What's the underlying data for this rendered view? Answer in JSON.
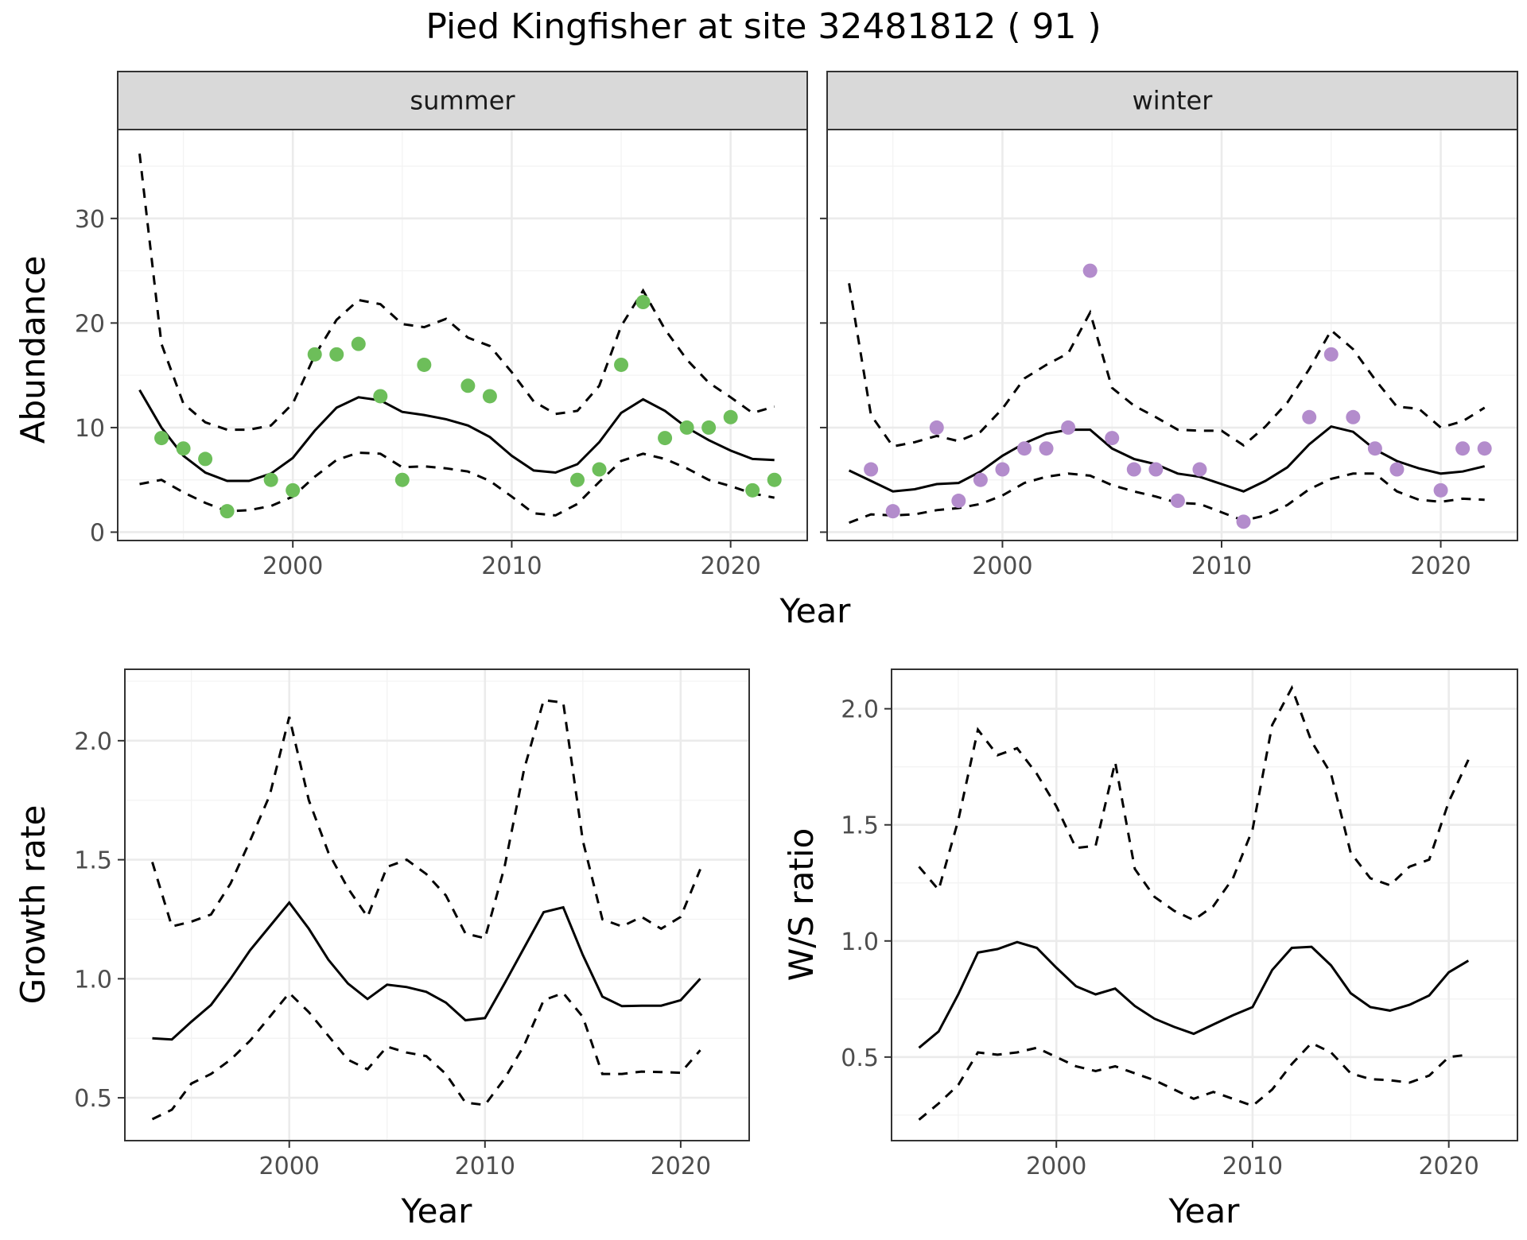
{
  "page": {
    "title": "Pied Kingfisher at site 32481812 ( 91 )"
  },
  "chart_data": [
    {
      "type": "line",
      "id": "abundance-summer",
      "facet_label": "summer",
      "xlabel": "Year",
      "ylabel": "Abundance",
      "xlim": [
        1992,
        2023.5
      ],
      "ylim": [
        -0.8,
        38.5
      ],
      "xticks": [
        2000,
        2010,
        2020
      ],
      "yticks": [
        0,
        10,
        20,
        30
      ],
      "grid": true,
      "point_color": "#6dbe5a",
      "fit": {
        "x": [
          1993,
          1994,
          1995,
          1996,
          1997,
          1998,
          1999,
          2000,
          2001,
          2002,
          2003,
          2004,
          2005,
          2006,
          2007,
          2008,
          2009,
          2010,
          2011,
          2012,
          2013,
          2014,
          2015,
          2016,
          2017,
          2018,
          2019,
          2020,
          2021,
          2022
        ],
        "y": [
          13.6,
          10.0,
          7.3,
          5.7,
          4.9,
          4.9,
          5.6,
          7.1,
          9.7,
          11.9,
          12.9,
          12.6,
          11.5,
          11.2,
          10.8,
          10.2,
          9.1,
          7.3,
          5.9,
          5.7,
          6.5,
          8.6,
          11.4,
          12.7,
          11.6,
          10.0,
          8.8,
          7.8,
          7.0,
          6.9
        ]
      },
      "lower": {
        "x": [
          1993,
          1994,
          1995,
          1996,
          1997,
          1998,
          1999,
          2000,
          2001,
          2002,
          2003,
          2004,
          2005,
          2006,
          2007,
          2008,
          2009,
          2010,
          2011,
          2012,
          2013,
          2014,
          2015,
          2016,
          2017,
          2018,
          2019,
          2020,
          2021,
          2022
        ],
        "y": [
          4.6,
          5.0,
          3.8,
          2.8,
          2.0,
          2.1,
          2.5,
          3.4,
          5.3,
          6.9,
          7.6,
          7.5,
          6.2,
          6.3,
          6.1,
          5.8,
          4.9,
          3.4,
          1.8,
          1.6,
          2.7,
          4.8,
          6.8,
          7.5,
          7.0,
          6.1,
          5.0,
          4.4,
          3.7,
          3.3
        ]
      },
      "upper": {
        "x": [
          1993,
          1994,
          1995,
          1996,
          1997,
          1998,
          1999,
          2000,
          2001,
          2002,
          2003,
          2004,
          2005,
          2006,
          2007,
          2008,
          2009,
          2010,
          2011,
          2012,
          2013,
          2014,
          2015,
          2016,
          2017,
          2018,
          2019,
          2020,
          2021,
          2022
        ],
        "y": [
          36.2,
          18.0,
          12.3,
          10.5,
          9.8,
          9.8,
          10.2,
          12.3,
          16.9,
          20.3,
          22.2,
          21.8,
          19.9,
          19.6,
          20.4,
          18.6,
          17.8,
          15.3,
          12.5,
          11.3,
          11.6,
          14.0,
          19.7,
          23.1,
          19.4,
          16.5,
          14.3,
          12.9,
          11.4,
          12.0
        ]
      },
      "points": {
        "x": [
          1994,
          1995,
          1996,
          1997,
          1999,
          2000,
          2001,
          2002,
          2003,
          2004,
          2005,
          2006,
          2008,
          2009,
          2013,
          2014,
          2015,
          2016,
          2017,
          2018,
          2019,
          2020,
          2021,
          2022
        ],
        "y": [
          9,
          8,
          7,
          2,
          5,
          4,
          17,
          17,
          18,
          13,
          5,
          16,
          14,
          13,
          5,
          6,
          16,
          22,
          9,
          10,
          10,
          11,
          4,
          5
        ]
      }
    },
    {
      "type": "line",
      "id": "abundance-winter",
      "facet_label": "winter",
      "xlabel": "Year",
      "ylabel": "Abundance",
      "xlim": [
        1992,
        2023.5
      ],
      "ylim": [
        -0.8,
        38.5
      ],
      "xticks": [
        2000,
        2010,
        2020
      ],
      "yticks": [
        0,
        10,
        20,
        30
      ],
      "grid": true,
      "point_color": "#b38ccc",
      "fit": {
        "x": [
          1993,
          1994,
          1995,
          1996,
          1997,
          1998,
          1999,
          2000,
          2001,
          2002,
          2003,
          2004,
          2005,
          2006,
          2007,
          2008,
          2009,
          2010,
          2011,
          2012,
          2013,
          2014,
          2015,
          2016,
          2017,
          2018,
          2019,
          2020,
          2021,
          2022
        ],
        "y": [
          5.9,
          4.9,
          3.9,
          4.1,
          4.6,
          4.7,
          5.8,
          7.3,
          8.5,
          9.4,
          9.8,
          9.8,
          8.0,
          7.0,
          6.5,
          5.6,
          5.3,
          4.6,
          3.9,
          4.9,
          6.2,
          8.4,
          10.1,
          9.6,
          7.9,
          6.8,
          6.1,
          5.6,
          5.8,
          6.3
        ]
      },
      "lower": {
        "x": [
          1993,
          1994,
          1995,
          1996,
          1997,
          1998,
          1999,
          2000,
          2001,
          2002,
          2003,
          2004,
          2005,
          2006,
          2007,
          2008,
          2009,
          2010,
          2011,
          2012,
          2013,
          2014,
          2015,
          2016,
          2017,
          2018,
          2019,
          2020,
          2021,
          2022
        ],
        "y": [
          0.9,
          1.7,
          1.6,
          1.7,
          2.1,
          2.3,
          2.7,
          3.5,
          4.7,
          5.3,
          5.6,
          5.4,
          4.5,
          3.9,
          3.4,
          2.8,
          2.7,
          1.9,
          1.1,
          1.6,
          2.6,
          4.1,
          5.1,
          5.6,
          5.6,
          3.9,
          3.1,
          2.9,
          3.2,
          3.1
        ]
      },
      "upper": {
        "x": [
          1993,
          1994,
          1995,
          1996,
          1997,
          1998,
          1999,
          2000,
          2001,
          2002,
          2003,
          2004,
          2005,
          2006,
          2007,
          2008,
          2009,
          2010,
          2011,
          2012,
          2013,
          2014,
          2015,
          2016,
          2017,
          2018,
          2019,
          2020,
          2021,
          2022
        ],
        "y": [
          23.8,
          11.2,
          8.2,
          8.6,
          9.2,
          8.7,
          9.6,
          11.8,
          14.7,
          16.0,
          17.1,
          21.0,
          13.8,
          12.1,
          11.0,
          9.8,
          9.7,
          9.7,
          8.3,
          10.1,
          12.4,
          15.6,
          19.3,
          17.5,
          14.6,
          12.0,
          11.8,
          10.0,
          10.6,
          11.9
        ]
      },
      "points": {
        "x": [
          1994,
          1995,
          1997,
          1998,
          1999,
          2000,
          2001,
          2002,
          2003,
          2004,
          2005,
          2006,
          2007,
          2008,
          2009,
          2011,
          2014,
          2015,
          2016,
          2017,
          2018,
          2020,
          2021,
          2022
        ],
        "y": [
          6,
          2,
          10,
          3,
          5,
          6,
          8,
          8,
          10,
          25,
          9,
          6,
          6,
          3,
          6,
          1,
          11,
          17,
          11,
          8,
          6,
          4,
          8,
          8
        ]
      }
    },
    {
      "type": "line",
      "id": "growth-rate",
      "xlabel": "Year",
      "ylabel": "Growth rate",
      "xlim": [
        1991.6,
        2023.5
      ],
      "ylim": [
        0.32,
        2.3
      ],
      "xticks": [
        2000,
        2010,
        2020
      ],
      "yticks": [
        0.5,
        1.0,
        1.5,
        2.0
      ],
      "grid": true,
      "fit": {
        "x": [
          1993,
          1994,
          1995,
          1996,
          1997,
          1998,
          1999,
          2000,
          2001,
          2002,
          2003,
          2004,
          2005,
          2006,
          2007,
          2008,
          2009,
          2010,
          2011,
          2012,
          2013,
          2014,
          2015,
          2016,
          2017,
          2018,
          2019,
          2020,
          2021
        ],
        "y": [
          0.75,
          0.745,
          0.82,
          0.89,
          1.0,
          1.12,
          1.22,
          1.32,
          1.21,
          1.08,
          0.98,
          0.915,
          0.975,
          0.965,
          0.945,
          0.9,
          0.826,
          0.835,
          0.98,
          1.13,
          1.28,
          1.3,
          1.1,
          0.925,
          0.885,
          0.887,
          0.887,
          0.91,
          1.0
        ]
      },
      "lower": {
        "x": [
          1993,
          1994,
          1995,
          1996,
          1997,
          1998,
          1999,
          2000,
          2001,
          2002,
          2003,
          2004,
          2005,
          2006,
          2007,
          2008,
          2009,
          2010,
          2011,
          2012,
          2013,
          2014,
          2015,
          2016,
          2017,
          2018,
          2019,
          2020,
          2021
        ],
        "y": [
          0.41,
          0.45,
          0.56,
          0.6,
          0.66,
          0.74,
          0.84,
          0.94,
          0.86,
          0.76,
          0.66,
          0.62,
          0.715,
          0.69,
          0.675,
          0.6,
          0.48,
          0.47,
          0.58,
          0.72,
          0.91,
          0.94,
          0.84,
          0.6,
          0.6,
          0.61,
          0.608,
          0.605,
          0.7
        ]
      },
      "upper": {
        "x": [
          1993,
          1994,
          1995,
          1996,
          1997,
          1998,
          1999,
          2000,
          2001,
          2002,
          2003,
          2004,
          2005,
          2006,
          2007,
          2008,
          2009,
          2010,
          2011,
          2012,
          2013,
          2014,
          2015,
          2016,
          2017,
          2018,
          2019,
          2020,
          2021
        ],
        "y": [
          1.49,
          1.22,
          1.24,
          1.27,
          1.4,
          1.58,
          1.77,
          2.1,
          1.75,
          1.53,
          1.38,
          1.26,
          1.47,
          1.5,
          1.44,
          1.35,
          1.19,
          1.17,
          1.47,
          1.88,
          2.17,
          2.16,
          1.58,
          1.25,
          1.22,
          1.26,
          1.21,
          1.26,
          1.46
        ]
      }
    },
    {
      "type": "line",
      "id": "ws-ratio",
      "xlabel": "Year",
      "ylabel": "W/S ratio",
      "xlim": [
        1991.6,
        2023.5
      ],
      "ylim": [
        0.14,
        2.17
      ],
      "xticks": [
        2000,
        2010,
        2020
      ],
      "yticks": [
        0.5,
        1.0,
        1.5,
        2.0
      ],
      "grid": true,
      "fit": {
        "x": [
          1993,
          1994,
          1995,
          1996,
          1997,
          1998,
          1999,
          2000,
          2001,
          2002,
          2003,
          2004,
          2005,
          2006,
          2007,
          2008,
          2009,
          2010,
          2011,
          2012,
          2013,
          2014,
          2015,
          2016,
          2017,
          2018,
          2019,
          2020,
          2021
        ],
        "y": [
          0.54,
          0.61,
          0.77,
          0.95,
          0.965,
          0.995,
          0.97,
          0.885,
          0.805,
          0.77,
          0.795,
          0.72,
          0.665,
          0.63,
          0.6,
          0.64,
          0.68,
          0.715,
          0.875,
          0.97,
          0.975,
          0.895,
          0.775,
          0.715,
          0.7,
          0.725,
          0.765,
          0.865,
          0.915
        ]
      },
      "lower": {
        "x": [
          1993,
          1994,
          1995,
          1996,
          1997,
          1998,
          1999,
          2000,
          2001,
          2002,
          2003,
          2004,
          2005,
          2006,
          2007,
          2008,
          2009,
          2010,
          2011,
          2012,
          2013,
          2014,
          2015,
          2016,
          2017,
          2018,
          2019,
          2020,
          2021
        ],
        "y": [
          0.23,
          0.3,
          0.38,
          0.52,
          0.51,
          0.52,
          0.54,
          0.5,
          0.46,
          0.44,
          0.46,
          0.43,
          0.4,
          0.36,
          0.32,
          0.35,
          0.32,
          0.29,
          0.36,
          0.47,
          0.56,
          0.52,
          0.43,
          0.405,
          0.4,
          0.39,
          0.42,
          0.5,
          0.51
        ]
      },
      "upper": {
        "x": [
          1993,
          1994,
          1995,
          1996,
          1997,
          1998,
          1999,
          2000,
          2001,
          2002,
          2003,
          2004,
          2005,
          2006,
          2007,
          2008,
          2009,
          2010,
          2011,
          2012,
          2013,
          2014,
          2015,
          2016,
          2017,
          2018,
          2019,
          2020,
          2021
        ],
        "y": [
          1.32,
          1.22,
          1.52,
          1.91,
          1.8,
          1.83,
          1.72,
          1.58,
          1.4,
          1.41,
          1.77,
          1.31,
          1.19,
          1.13,
          1.09,
          1.15,
          1.27,
          1.48,
          1.93,
          2.09,
          1.86,
          1.72,
          1.38,
          1.27,
          1.24,
          1.32,
          1.35,
          1.6,
          1.78
        ]
      }
    }
  ]
}
